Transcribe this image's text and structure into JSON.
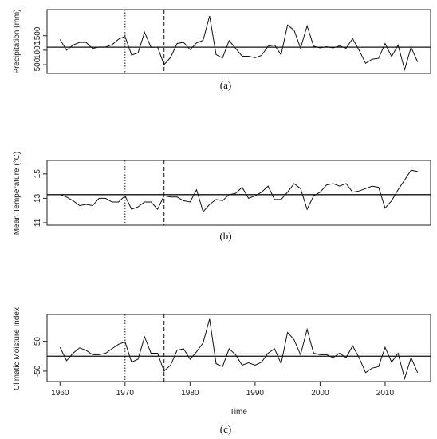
{
  "chart_data": [
    {
      "type": "line",
      "panel_label": "(a)",
      "ylabel": "Precipitation (mm)",
      "ylim": [
        200,
        2400
      ],
      "yticks": [
        500,
        1000,
        1500
      ],
      "xlim": [
        1958,
        2017
      ],
      "xticks": [],
      "reference_line": 1105,
      "vlines": [
        {
          "x": 1970,
          "style": "dotted"
        },
        {
          "x": 1976,
          "style": "dashed"
        }
      ],
      "series": [
        {
          "x": [
            1960,
            1961,
            1962,
            1963,
            1964,
            1965,
            1966,
            1967,
            1968,
            1969,
            1970,
            1971,
            1972,
            1973,
            1974,
            1975,
            1976,
            1977,
            1978,
            1979,
            1980,
            1981,
            1982,
            1983,
            1984,
            1985,
            1986,
            1987,
            1988,
            1989,
            1990,
            1991,
            1992,
            1993,
            1994,
            1995,
            1996,
            1997,
            1998,
            1999,
            2000,
            2001,
            2002,
            2003,
            2004,
            2005,
            2006,
            2007,
            2008,
            2009,
            2010,
            2011,
            2012,
            2013,
            2014,
            2015
          ],
          "values": [
            1370,
            1000,
            1180,
            1270,
            1270,
            1060,
            1110,
            1110,
            1190,
            1380,
            1480,
            830,
            910,
            1620,
            1100,
            1110,
            500,
            750,
            1230,
            1270,
            1020,
            1250,
            1340,
            2180,
            850,
            730,
            1330,
            1070,
            790,
            790,
            740,
            820,
            1140,
            1180,
            840,
            1870,
            1690,
            1070,
            1840,
            1140,
            1080,
            1120,
            1080,
            1150,
            1070,
            1400,
            1000,
            550,
            690,
            720,
            1230,
            780,
            1180,
            330,
            1100,
            600
          ]
        }
      ]
    },
    {
      "type": "line",
      "panel_label": "(b)",
      "ylabel": "Mean Temperature (°C)",
      "ylim": [
        10.8,
        16.1
      ],
      "yticks": [
        11,
        13,
        15
      ],
      "xlim": [
        1958,
        2017
      ],
      "xticks": [],
      "reference_line": 13.3,
      "vlines": [
        {
          "x": 1970,
          "style": "dotted"
        },
        {
          "x": 1976,
          "style": "dashed"
        }
      ],
      "series": [
        {
          "x": [
            1960,
            1961,
            1962,
            1963,
            1964,
            1965,
            1966,
            1967,
            1968,
            1969,
            1970,
            1971,
            1972,
            1973,
            1974,
            1975,
            1976,
            1977,
            1978,
            1979,
            1980,
            1981,
            1982,
            1983,
            1984,
            1985,
            1986,
            1987,
            1988,
            1989,
            1990,
            1991,
            1992,
            1993,
            1994,
            1995,
            1996,
            1997,
            1998,
            1999,
            2000,
            2001,
            2002,
            2003,
            2004,
            2005,
            2006,
            2007,
            2008,
            2009,
            2010,
            2011,
            2012,
            2013,
            2014,
            2015
          ],
          "values": [
            13.3,
            13.1,
            12.8,
            12.4,
            12.5,
            12.4,
            13.0,
            13.0,
            12.7,
            12.7,
            13.2,
            12.1,
            12.3,
            12.7,
            12.7,
            12.1,
            13.2,
            13.1,
            13.1,
            12.8,
            12.7,
            13.7,
            11.9,
            12.5,
            12.9,
            12.8,
            13.3,
            13.4,
            13.9,
            13.0,
            13.2,
            13.5,
            14.0,
            12.9,
            12.9,
            13.5,
            14.2,
            13.8,
            12.1,
            13.2,
            13.5,
            14.1,
            14.2,
            14.0,
            14.2,
            13.5,
            13.6,
            13.8,
            14.0,
            13.9,
            12.2,
            12.8,
            13.7,
            14.5,
            15.3,
            15.2
          ]
        }
      ]
    },
    {
      "type": "line",
      "panel_label": "(c)",
      "ylabel": "Climatic Moisture Index",
      "xlabel": "Time",
      "ylim": [
        -85,
        140
      ],
      "yticks": [
        -50,
        50
      ],
      "xlim": [
        1958,
        2017
      ],
      "xticks": [
        1960,
        1970,
        1980,
        1990,
        2000,
        2010
      ],
      "reference_line": 0,
      "reference_line_2": 8,
      "vlines": [
        {
          "x": 1970,
          "style": "dotted"
        },
        {
          "x": 1976,
          "style": "dashed"
        }
      ],
      "series": [
        {
          "x": [
            1960,
            1961,
            1962,
            1963,
            1964,
            1965,
            1966,
            1967,
            1968,
            1969,
            1970,
            1971,
            1972,
            1973,
            1974,
            1975,
            1976,
            1977,
            1978,
            1979,
            1980,
            1981,
            1982,
            1983,
            1984,
            1985,
            1986,
            1987,
            1988,
            1989,
            1990,
            1991,
            1992,
            1993,
            1994,
            1995,
            1996,
            1997,
            1998,
            1999,
            2000,
            2001,
            2002,
            2003,
            2004,
            2005,
            2006,
            2007,
            2008,
            2009,
            2010,
            2011,
            2012,
            2013,
            2014,
            2015
          ],
          "values": [
            30,
            -15,
            10,
            28,
            20,
            5,
            5,
            10,
            25,
            40,
            48,
            -20,
            -10,
            65,
            10,
            10,
            -50,
            -30,
            20,
            25,
            -10,
            15,
            45,
            125,
            -25,
            -35,
            25,
            5,
            -30,
            -22,
            -30,
            -20,
            10,
            25,
            -25,
            80,
            55,
            5,
            90,
            10,
            5,
            5,
            -5,
            10,
            -5,
            35,
            -5,
            -55,
            -40,
            -35,
            30,
            -20,
            10,
            -75,
            -5,
            -55
          ]
        }
      ]
    }
  ]
}
